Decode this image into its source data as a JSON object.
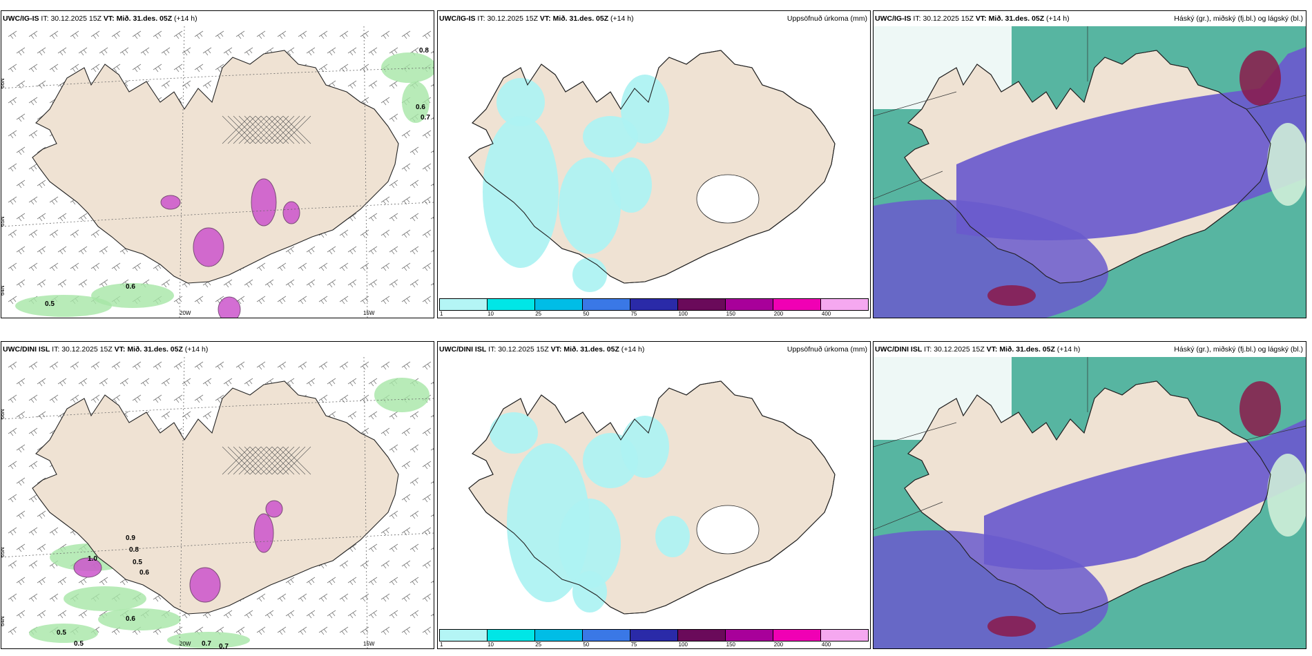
{
  "panels": [
    {
      "row": "top",
      "col": "left",
      "model": "UWC/IG-IS",
      "it_label": "IT:",
      "it": "30.12.2025 15Z",
      "vt_label": "VT:",
      "vt": "Mið. 31.des. 05Z",
      "lead": "(+14 h)",
      "right_title": "",
      "lon_labels": [
        "20W",
        "15W"
      ],
      "lat_labels": [
        "66N",
        "65N",
        "64N"
      ],
      "labels": [
        "0.8",
        "0.6",
        "0.7",
        "0.6",
        "0.5"
      ]
    },
    {
      "row": "top",
      "col": "mid",
      "model": "UWC/IG-IS",
      "it_label": "IT:",
      "it": "30.12.2025 15Z",
      "vt_label": "VT:",
      "vt": "Mið. 31.des. 05Z",
      "lead": "(+14 h)",
      "right_title": "Uppsöfnuð úrkoma (mm)",
      "lon_labels": [],
      "lat_labels": [],
      "labels": []
    },
    {
      "row": "top",
      "col": "right",
      "model": "UWC/IG-IS",
      "it_label": "IT:",
      "it": "30.12.2025 15Z",
      "vt_label": "VT:",
      "vt": "Mið. 31.des. 05Z",
      "lead": "(+14 h)",
      "right_title": "Háský (gr.), miðský (fj.bl.) og lágský (bl.)",
      "lon_labels": [],
      "lat_labels": [],
      "labels": []
    },
    {
      "row": "bottom",
      "col": "left",
      "model": "UWC/DINI ISL",
      "it_label": "IT:",
      "it": "30.12.2025 15Z",
      "vt_label": "VT:",
      "vt": "Mið. 31.des. 05Z",
      "lead": "(+14 h)",
      "right_title": "",
      "lon_labels": [
        "20W",
        "15W"
      ],
      "lat_labels": [
        "66N",
        "65N",
        "64N"
      ],
      "labels": [
        "1.0",
        "0.9",
        "0.8",
        "0.5",
        "0.6",
        "0.5",
        "0.6",
        "0.5",
        "0.7",
        "0.7"
      ]
    },
    {
      "row": "bottom",
      "col": "mid",
      "model": "UWC/DINI ISL",
      "it_label": "IT:",
      "it": "30.12.2025 15Z",
      "vt_label": "VT:",
      "vt": "Mið. 31.des. 05Z",
      "lead": "(+14 h)",
      "right_title": "Uppsöfnuð úrkoma (mm)",
      "lon_labels": [],
      "lat_labels": [],
      "labels": []
    },
    {
      "row": "bottom",
      "col": "right",
      "model": "UWC/DINI ISL",
      "it_label": "IT:",
      "it": "30.12.2025 15Z",
      "vt_label": "VT:",
      "vt": "Mið. 31.des. 05Z",
      "lead": "(+14 h)",
      "right_title": "Háský (gr.), miðský (fj.bl.) og lágský (bl.)",
      "lon_labels": [],
      "lat_labels": [],
      "labels": []
    }
  ],
  "colorbar": {
    "ticks": [
      "1",
      "10",
      "25",
      "50",
      "75",
      "100",
      "150",
      "200",
      "400"
    ],
    "colors": [
      "#b4f5f5",
      "#00e6e6",
      "#00bde6",
      "#3a78e6",
      "#2a2aa8",
      "#6a0a5a",
      "#a8009a",
      "#f000b4",
      "#f5a8f0"
    ]
  },
  "colors": {
    "land": "#efe2d3",
    "precip": "#aef2f2",
    "cloud_high": "#6a5acd",
    "cloud_mid": "#3aa890",
    "cloud_low": "#cfeed8",
    "magenta": "#cc55cc",
    "green": "#a6e6a6"
  }
}
